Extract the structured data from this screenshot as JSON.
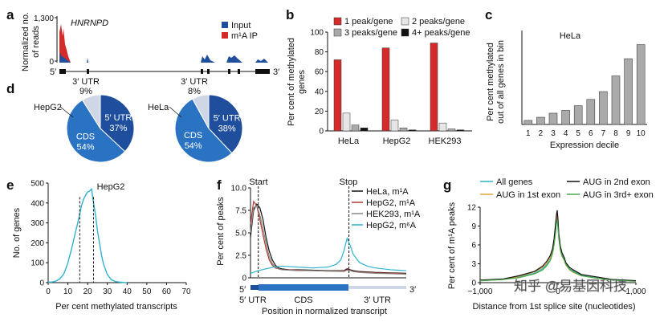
{
  "colors": {
    "red": "#d42b2b",
    "blue_dark": "#1f4e9c",
    "blue_mid": "#2a72c2",
    "light_gray": "#cfd6e6",
    "cyan": "#2db3cf",
    "black": "#111111",
    "darkred": "#b53a2e",
    "gray": "#888888",
    "bar_gray": "#aaaaaa",
    "bar_light": "#e6e6e6",
    "orange": "#e8a43a",
    "green": "#4aa84a"
  },
  "panel_a": {
    "label": "a",
    "gene": "HNRNPD",
    "ylabel_line1": "Normalized no.",
    "ylabel_line2": "of reads",
    "yticks": [
      "1,300",
      "0"
    ],
    "legend": [
      "Input",
      "m¹A IP"
    ],
    "five_prime": "5′",
    "three_prime": "3′"
  },
  "panel_b": {
    "label": "b",
    "chart_data": {
      "type": "bar",
      "categories": [
        "HeLa",
        "HepG2",
        "HEK293"
      ],
      "series": [
        {
          "name": "1 peak/gene",
          "values": [
            72,
            84,
            89
          ]
        },
        {
          "name": "2 peaks/gene",
          "values": [
            18,
            11,
            8
          ]
        },
        {
          "name": "3 peaks/gene",
          "values": [
            6,
            3,
            2
          ]
        },
        {
          "name": "4+ peaks/gene",
          "values": [
            3,
            1,
            1
          ]
        }
      ],
      "ylabel": "Per cent of methylated genes",
      "ylim": [
        0,
        100
      ],
      "yticks": [
        0,
        20,
        40,
        60,
        80,
        100
      ]
    },
    "ylabel_line1": "Per cent of methylated",
    "ylabel_line2": "genes"
  },
  "panel_c": {
    "label": "c",
    "chart_data": {
      "type": "bar",
      "title": "HeLa",
      "categories": [
        "1",
        "2",
        "3",
        "4",
        "5",
        "6",
        "7",
        "8",
        "9",
        "10"
      ],
      "values": [
        1.3,
        2.3,
        3.6,
        4.5,
        6.0,
        8.0,
        10.5,
        15.5,
        21.0,
        25.5
      ],
      "xlabel": "Expression decile",
      "ylabel": "Per cent methylated out of all genes in bin",
      "ylim": [
        0,
        30
      ],
      "yticks": [
        0,
        10,
        20,
        30
      ]
    },
    "ylabel_line1": "Per cent methylated",
    "ylabel_line2": "out of all genes in bin"
  },
  "panel_d": {
    "label": "d",
    "chart_data": [
      {
        "type": "pie",
        "title": "HepG2",
        "slices": [
          {
            "name": "5′ UTR",
            "value": 37
          },
          {
            "name": "CDS",
            "value": 54
          },
          {
            "name": "3′ UTR",
            "value": 9
          }
        ]
      },
      {
        "type": "pie",
        "title": "HeLa",
        "slices": [
          {
            "name": "5′ UTR",
            "value": 38
          },
          {
            "name": "CDS",
            "value": 54
          },
          {
            "name": "3′ UTR",
            "value": 8
          }
        ]
      }
    ]
  },
  "panel_e": {
    "label": "e",
    "chart_data": {
      "type": "line",
      "title": "HepG2",
      "x": [
        0,
        2,
        4,
        6,
        8,
        10,
        12,
        14,
        15,
        16,
        17,
        18,
        19,
        20,
        21,
        22,
        23,
        24,
        25,
        26,
        27,
        28,
        30,
        32,
        34,
        36,
        38,
        40
      ],
      "y": [
        2,
        3,
        8,
        20,
        45,
        100,
        175,
        260,
        300,
        345,
        390,
        420,
        440,
        455,
        460,
        470,
        400,
        340,
        260,
        200,
        140,
        95,
        40,
        15,
        6,
        3,
        1,
        0
      ],
      "medians": [
        16,
        23
      ],
      "xlabel": "Per cent methylated transcripts",
      "ylabel": "No. of genes",
      "xlim": [
        0,
        70
      ],
      "ylim": [
        0,
        500
      ],
      "xticks": [
        0,
        10,
        20,
        30,
        40,
        50,
        60,
        70
      ],
      "yticks": [
        0,
        100,
        200,
        300,
        400,
        500
      ]
    }
  },
  "panel_f": {
    "label": "f",
    "chart_data": {
      "type": "line",
      "series": [
        {
          "name": "HeLa, m¹A",
          "x": [
            0,
            0.02,
            0.04,
            0.06,
            0.08,
            0.1,
            0.12,
            0.14,
            0.16,
            0.18,
            0.2,
            0.25,
            0.3,
            0.4,
            0.5,
            0.6,
            0.62,
            0.64,
            0.66,
            0.7,
            0.8,
            0.9,
            1.0
          ],
          "y": [
            4.5,
            7.5,
            8.2,
            7.8,
            6.5,
            4.5,
            3.0,
            2.0,
            1.4,
            1.1,
            1.0,
            0.9,
            0.9,
            0.85,
            0.8,
            0.8,
            1.0,
            0.9,
            0.8,
            0.7,
            0.6,
            0.55,
            0.5
          ]
        },
        {
          "name": "HepG2, m¹A",
          "x": [
            0,
            0.02,
            0.04,
            0.06,
            0.08,
            0.1,
            0.12,
            0.14,
            0.16,
            0.18,
            0.2,
            0.25,
            0.3,
            0.4,
            0.5,
            0.6,
            0.62,
            0.64,
            0.66,
            0.7,
            0.8,
            0.9,
            1.0
          ],
          "y": [
            6.0,
            8.5,
            8.0,
            6.5,
            4.8,
            3.2,
            2.0,
            1.4,
            1.1,
            1.0,
            0.9,
            0.9,
            0.85,
            0.8,
            0.75,
            0.75,
            0.9,
            0.85,
            0.7,
            0.65,
            0.55,
            0.5,
            0.45
          ]
        },
        {
          "name": "HEK293, m¹A",
          "x": [
            0,
            0.02,
            0.04,
            0.06,
            0.08,
            0.1,
            0.12,
            0.14,
            0.16,
            0.18,
            0.2,
            0.25,
            0.3,
            0.4,
            0.5,
            0.6,
            0.62,
            0.64,
            0.66,
            0.7,
            0.8,
            0.9,
            1.0
          ],
          "y": [
            5.0,
            7.8,
            8.0,
            7.0,
            5.5,
            3.8,
            2.4,
            1.6,
            1.2,
            1.0,
            0.9,
            0.85,
            0.8,
            0.8,
            0.75,
            0.7,
            0.85,
            0.8,
            0.7,
            0.6,
            0.5,
            0.45,
            0.4
          ]
        },
        {
          "name": "HepG2, m⁶A",
          "x": [
            0,
            0.05,
            0.1,
            0.15,
            0.2,
            0.3,
            0.4,
            0.5,
            0.55,
            0.58,
            0.6,
            0.62,
            0.64,
            0.66,
            0.7,
            0.75,
            0.8,
            0.85,
            0.9,
            0.95,
            1.0
          ],
          "y": [
            0.5,
            0.8,
            1.0,
            1.2,
            1.3,
            1.2,
            1.1,
            1.2,
            1.5,
            2.0,
            3.0,
            4.4,
            3.6,
            2.6,
            1.7,
            1.3,
            1.1,
            1.0,
            0.9,
            0.85,
            0.8
          ]
        }
      ],
      "start_label": "Start",
      "stop_label": "Stop",
      "xlabel": "Position in normalized transcript",
      "ylabel": "Per cent of peaks",
      "ylim": [
        0,
        10
      ],
      "yticks": [
        "0",
        "2.5",
        "5.0",
        "7.5",
        "10.0"
      ],
      "segments": [
        "5′ UTR",
        "CDS",
        "3′ UTR"
      ],
      "five_prime": "5′",
      "three_prime": "3′"
    }
  },
  "panel_g": {
    "label": "g",
    "chart_data": {
      "type": "line",
      "series": [
        {
          "name": "All genes",
          "x": [
            -1000,
            -700,
            -500,
            -300,
            -200,
            -150,
            -100,
            -70,
            -50,
            -30,
            -20,
            -10,
            0,
            10,
            30,
            50,
            80,
            100,
            150,
            200,
            300,
            500,
            700,
            1000
          ],
          "y": [
            0.3,
            0.5,
            0.9,
            1.5,
            2.2,
            2.8,
            3.8,
            5.0,
            6.5,
            8.5,
            10.0,
            10.5,
            9.0,
            7.5,
            5.5,
            4.5,
            3.8,
            3.0,
            2.2,
            1.8,
            1.2,
            0.8,
            0.5,
            0.3
          ]
        },
        {
          "name": "AUG in 1st exon",
          "x": [
            -1000,
            -700,
            -500,
            -300,
            -200,
            -150,
            -100,
            -70,
            -50,
            -30,
            -20,
            -10,
            0,
            10,
            30,
            50,
            80,
            100,
            150,
            200,
            300,
            500,
            700,
            1000
          ],
          "y": [
            0.3,
            0.5,
            1.0,
            1.7,
            2.4,
            3.0,
            4.0,
            5.2,
            6.8,
            8.8,
            10.2,
            10.8,
            9.2,
            7.2,
            5.2,
            4.2,
            3.6,
            2.8,
            2.0,
            1.6,
            1.1,
            0.7,
            0.4,
            0.3
          ]
        },
        {
          "name": "AUG in 2nd exon",
          "x": [
            -1000,
            -700,
            -500,
            -300,
            -200,
            -150,
            -100,
            -70,
            -50,
            -30,
            -20,
            -10,
            0,
            10,
            30,
            50,
            80,
            100,
            150,
            200,
            300,
            500,
            700,
            1000
          ],
          "y": [
            0.4,
            0.6,
            1.1,
            1.8,
            2.6,
            3.3,
            4.3,
            5.4,
            7.0,
            9.5,
            10.8,
            11.5,
            10.0,
            7.8,
            5.8,
            4.8,
            4.0,
            3.2,
            2.4,
            2.0,
            1.3,
            0.9,
            0.5,
            0.3
          ]
        },
        {
          "name": "AUG in 3rd+ exon",
          "x": [
            -1000,
            -700,
            -500,
            -300,
            -200,
            -150,
            -100,
            -70,
            -50,
            -30,
            -20,
            -10,
            0,
            10,
            30,
            50,
            80,
            100,
            150,
            200,
            300,
            500,
            700,
            1000
          ],
          "y": [
            0.3,
            0.5,
            0.8,
            1.4,
            2.0,
            2.6,
            3.5,
            4.6,
            6.0,
            8.0,
            9.4,
            10.0,
            8.6,
            7.0,
            5.2,
            4.3,
            3.6,
            2.9,
            2.1,
            1.7,
            1.1,
            0.7,
            0.4,
            0.2
          ]
        }
      ],
      "xlabel": "Distance from 1st splice site (nucleotides)",
      "ylabel": "Per cent of m¹A peaks",
      "xlim": [
        -1000,
        1000
      ],
      "ylim": [
        0,
        12
      ],
      "xticks": [
        "−1,000",
        "0",
        "1,000"
      ],
      "yticks": [
        0,
        3,
        6,
        9,
        12
      ]
    }
  },
  "watermark": "知乎 @易基因科技"
}
